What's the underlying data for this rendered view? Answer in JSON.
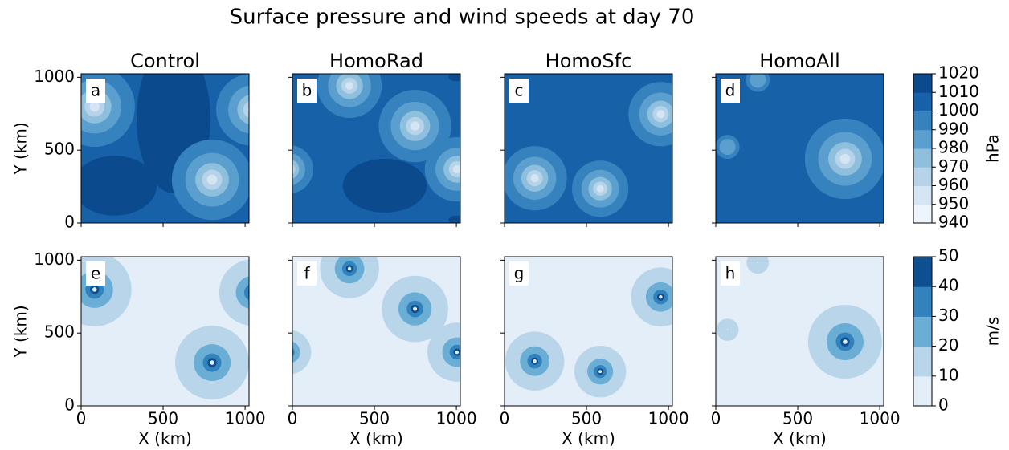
{
  "chart_data": {
    "type": "contour",
    "title": "Surface pressure and wind speeds at day 70",
    "xlabel": "X (km)",
    "ylabel": "Y (km)",
    "xlim": [
      0,
      1024
    ],
    "ylim": [
      0,
      1024
    ],
    "xticks": [
      0,
      500,
      1000
    ],
    "yticks": [
      0,
      500,
      1000
    ],
    "columns": [
      "Control",
      "HomoRad",
      "HomoSfc",
      "HomoAll"
    ],
    "rows": [
      {
        "panels": [
          "a",
          "b",
          "c",
          "d"
        ],
        "colorbar": {
          "label": "hPa",
          "ticks": [
            940,
            950,
            960,
            970,
            980,
            990,
            1000,
            1010,
            1020
          ],
          "colors": [
            "#eef4fb",
            "#d6e5f4",
            "#b6d3ea",
            "#8ebfdd",
            "#5b9fcf",
            "#3582be",
            "#1661a8",
            "#0b4a8d"
          ]
        }
      },
      {
        "panels": [
          "e",
          "f",
          "g",
          "h"
        ],
        "colorbar": {
          "label": "m/s",
          "ticks": [
            0,
            10,
            20,
            30,
            40,
            50
          ],
          "colors": [
            "#e3eef8",
            "#b9d5ea",
            "#6aaed6",
            "#3282bd",
            "#0e4f92"
          ]
        }
      }
    ]
  }
}
